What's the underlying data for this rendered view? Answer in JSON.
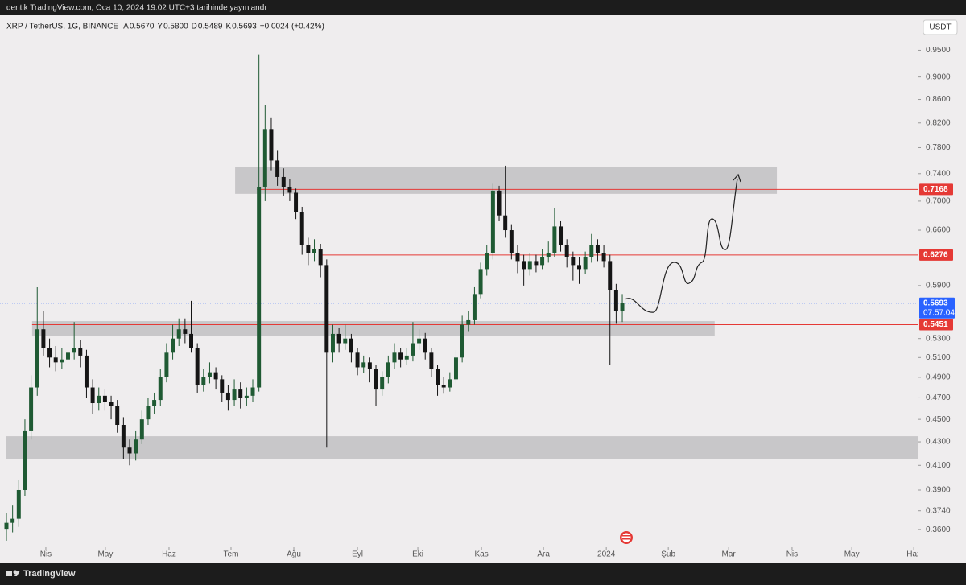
{
  "header": {
    "publish_note": "dentik TradingView.com, Oca 10, 2024 19:02 UTC+3 tarihinde yayınlandı",
    "symbol": "XRP / TetherUS, 1G, BINANCE",
    "ohlc": [
      {
        "label": "A",
        "value": "0.5670"
      },
      {
        "label": "Y",
        "value": "0.5800"
      },
      {
        "label": "D",
        "value": "0.5489"
      },
      {
        "label": "K",
        "value": "0.5693"
      }
    ],
    "change": "+0.0024 (+0.42%)",
    "currency": "USDT"
  },
  "footer": {
    "brand": "TradingView"
  },
  "chart_data": {
    "type": "candlestick",
    "log_scale": true,
    "up_color": "#1f5a33",
    "down_color": "#151515",
    "xlim": [
      -3.137,
      443.9
    ],
    "ylim": [
      0.3474,
      1.018
    ],
    "xticks": [
      {
        "value": 19.2,
        "label": "Nis"
      },
      {
        "value": 48.2,
        "label": "May"
      },
      {
        "value": 79.2,
        "label": "Haz"
      },
      {
        "value": 109.4,
        "label": "Tem"
      },
      {
        "value": 140,
        "label": "Ağu"
      },
      {
        "value": 171,
        "label": "Eyl"
      },
      {
        "value": 200.4,
        "label": "Eki"
      },
      {
        "value": 231.4,
        "label": "Kas"
      },
      {
        "value": 261.6,
        "label": "Ara"
      },
      {
        "value": 292.2,
        "label": "2024"
      },
      {
        "value": 322.4,
        "label": "Şub"
      },
      {
        "value": 351.8,
        "label": "Mar"
      },
      {
        "value": 382.7,
        "label": "Nis"
      },
      {
        "value": 411.8,
        "label": "May"
      },
      {
        "value": 442,
        "label": "Haz"
      }
    ],
    "yticks": [
      {
        "value": 0.95,
        "label": "0.9500"
      },
      {
        "value": 0.9,
        "label": "0.9000"
      },
      {
        "value": 0.86,
        "label": "0.8600"
      },
      {
        "value": 0.82,
        "label": "0.8200"
      },
      {
        "value": 0.78,
        "label": "0.7800"
      },
      {
        "value": 0.74,
        "label": "0.7400"
      },
      {
        "value": 0.7,
        "label": "0.7000"
      },
      {
        "value": 0.66,
        "label": "0.6600"
      },
      {
        "value": 0.59,
        "label": "0.5900"
      },
      {
        "value": 0.53,
        "label": "0.5300"
      },
      {
        "value": 0.51,
        "label": "0.5100"
      },
      {
        "value": 0.49,
        "label": "0.4900"
      },
      {
        "value": 0.47,
        "label": "0.4700"
      },
      {
        "value": 0.45,
        "label": "0.4500"
      },
      {
        "value": 0.43,
        "label": "0.4300"
      },
      {
        "value": 0.41,
        "label": "0.4100"
      },
      {
        "value": 0.39,
        "label": "0.3900"
      },
      {
        "value": 0.374,
        "label": "0.3740"
      },
      {
        "value": 0.36,
        "label": "0.3600"
      }
    ],
    "zones": [
      {
        "x": [
          111.4,
          375.3
        ],
        "y": [
          0.7104,
          0.7495
        ],
        "color": "#c8c7c9"
      },
      {
        "x": [
          12.5,
          345
        ],
        "y": [
          0.5325,
          0.549
        ],
        "color": "#c8c7c9"
      },
      {
        "x": [
          0,
          444
        ],
        "y": [
          0.4155,
          0.4349
        ],
        "color": "#c8c7c9"
      }
    ],
    "levels": [
      {
        "value": 0.7168,
        "label": "0.7168",
        "x_from": 122,
        "color": "#e53935"
      },
      {
        "value": 0.6276,
        "label": "0.6276",
        "x_from": 153.7,
        "color": "#e53935"
      },
      {
        "value": 0.5451,
        "label": "0.5451",
        "x_from": 12.5,
        "color": "#e53935"
      }
    ],
    "last_price": {
      "value": 0.5693,
      "label": "0.5693",
      "countdown": "07:57:04",
      "color": "#2962ff"
    },
    "x": [
      0,
      3,
      6,
      9,
      12,
      15,
      18,
      21,
      24,
      27,
      30,
      33,
      36,
      39,
      42,
      45,
      48,
      51,
      54,
      57,
      60,
      63,
      66,
      69,
      72,
      75,
      78,
      81,
      84,
      87,
      90,
      93,
      96,
      99,
      102,
      105,
      108,
      111,
      114,
      117,
      120,
      123,
      126,
      129,
      132,
      135,
      138,
      141,
      144,
      147,
      150,
      153,
      156,
      159,
      162,
      165,
      168,
      171,
      174,
      177,
      180,
      183,
      186,
      189,
      192,
      195,
      198,
      201,
      204,
      207,
      210,
      213,
      216,
      219,
      222,
      225,
      228,
      231,
      234,
      237,
      240,
      243,
      246,
      249,
      252,
      255,
      258,
      261,
      264,
      267,
      270,
      273,
      276,
      279,
      282,
      285,
      288,
      291,
      294,
      297,
      300
    ],
    "ohlc": [
      [
        0.36,
        0.372,
        0.352,
        0.365
      ],
      [
        0.365,
        0.378,
        0.358,
        0.368
      ],
      [
        0.368,
        0.398,
        0.362,
        0.39
      ],
      [
        0.39,
        0.45,
        0.385,
        0.44
      ],
      [
        0.44,
        0.492,
        0.432,
        0.48
      ],
      [
        0.48,
        0.588,
        0.472,
        0.54
      ],
      [
        0.54,
        0.56,
        0.512,
        0.52
      ],
      [
        0.52,
        0.53,
        0.5,
        0.51
      ],
      [
        0.51,
        0.522,
        0.496,
        0.505
      ],
      [
        0.505,
        0.52,
        0.498,
        0.508
      ],
      [
        0.508,
        0.53,
        0.502,
        0.515
      ],
      [
        0.515,
        0.548,
        0.508,
        0.52
      ],
      [
        0.52,
        0.528,
        0.5,
        0.512
      ],
      [
        0.512,
        0.518,
        0.47,
        0.48
      ],
      [
        0.48,
        0.488,
        0.455,
        0.465
      ],
      [
        0.465,
        0.48,
        0.458,
        0.472
      ],
      [
        0.472,
        0.478,
        0.458,
        0.466
      ],
      [
        0.466,
        0.472,
        0.45,
        0.462
      ],
      [
        0.462,
        0.468,
        0.438,
        0.445
      ],
      [
        0.445,
        0.452,
        0.415,
        0.425
      ],
      [
        0.425,
        0.432,
        0.41,
        0.42
      ],
      [
        0.42,
        0.44,
        0.414,
        0.432
      ],
      [
        0.432,
        0.458,
        0.428,
        0.45
      ],
      [
        0.45,
        0.47,
        0.445,
        0.462
      ],
      [
        0.462,
        0.475,
        0.455,
        0.468
      ],
      [
        0.468,
        0.498,
        0.462,
        0.49
      ],
      [
        0.49,
        0.525,
        0.485,
        0.515
      ],
      [
        0.515,
        0.545,
        0.508,
        0.53
      ],
      [
        0.53,
        0.552,
        0.522,
        0.54
      ],
      [
        0.54,
        0.552,
        0.525,
        0.535
      ],
      [
        0.535,
        0.572,
        0.515,
        0.52
      ],
      [
        0.52,
        0.525,
        0.475,
        0.482
      ],
      [
        0.482,
        0.498,
        0.476,
        0.49
      ],
      [
        0.49,
        0.505,
        0.484,
        0.495
      ],
      [
        0.495,
        0.5,
        0.478,
        0.488
      ],
      [
        0.488,
        0.492,
        0.466,
        0.475
      ],
      [
        0.475,
        0.482,
        0.458,
        0.468
      ],
      [
        0.468,
        0.488,
        0.462,
        0.478
      ],
      [
        0.478,
        0.485,
        0.46,
        0.47
      ],
      [
        0.47,
        0.48,
        0.462,
        0.472
      ],
      [
        0.472,
        0.488,
        0.466,
        0.48
      ],
      [
        0.48,
        0.942,
        0.476,
        0.72
      ],
      [
        0.72,
        0.85,
        0.7,
        0.81
      ],
      [
        0.81,
        0.828,
        0.745,
        0.76
      ],
      [
        0.76,
        0.775,
        0.722,
        0.735
      ],
      [
        0.735,
        0.748,
        0.708,
        0.72
      ],
      [
        0.72,
        0.732,
        0.7,
        0.712
      ],
      [
        0.712,
        0.718,
        0.675,
        0.685
      ],
      [
        0.685,
        0.692,
        0.628,
        0.64
      ],
      [
        0.64,
        0.65,
        0.615,
        0.63
      ],
      [
        0.63,
        0.648,
        0.62,
        0.635
      ],
      [
        0.635,
        0.642,
        0.6,
        0.615
      ],
      [
        0.615,
        0.622,
        0.425,
        0.515
      ],
      [
        0.515,
        0.545,
        0.505,
        0.535
      ],
      [
        0.535,
        0.542,
        0.515,
        0.525
      ],
      [
        0.525,
        0.545,
        0.518,
        0.53
      ],
      [
        0.53,
        0.535,
        0.505,
        0.515
      ],
      [
        0.515,
        0.52,
        0.492,
        0.5
      ],
      [
        0.5,
        0.512,
        0.494,
        0.505
      ],
      [
        0.505,
        0.51,
        0.485,
        0.498
      ],
      [
        0.498,
        0.502,
        0.462,
        0.478
      ],
      [
        0.478,
        0.496,
        0.472,
        0.49
      ],
      [
        0.49,
        0.512,
        0.484,
        0.505
      ],
      [
        0.505,
        0.525,
        0.498,
        0.515
      ],
      [
        0.515,
        0.52,
        0.5,
        0.508
      ],
      [
        0.508,
        0.52,
        0.502,
        0.512
      ],
      [
        0.512,
        0.548,
        0.506,
        0.525
      ],
      [
        0.525,
        0.54,
        0.518,
        0.53
      ],
      [
        0.53,
        0.536,
        0.508,
        0.515
      ],
      [
        0.515,
        0.52,
        0.49,
        0.498
      ],
      [
        0.498,
        0.502,
        0.472,
        0.482
      ],
      [
        0.482,
        0.49,
        0.474,
        0.48
      ],
      [
        0.48,
        0.495,
        0.476,
        0.488
      ],
      [
        0.488,
        0.518,
        0.484,
        0.51
      ],
      [
        0.51,
        0.555,
        0.505,
        0.545
      ],
      [
        0.545,
        0.56,
        0.538,
        0.55
      ],
      [
        0.55,
        0.588,
        0.545,
        0.58
      ],
      [
        0.58,
        0.618,
        0.575,
        0.61
      ],
      [
        0.61,
        0.64,
        0.602,
        0.63
      ],
      [
        0.63,
        0.725,
        0.622,
        0.715
      ],
      [
        0.715,
        0.722,
        0.672,
        0.68
      ],
      [
        0.68,
        0.752,
        0.65,
        0.66
      ],
      [
        0.66,
        0.668,
        0.622,
        0.63
      ],
      [
        0.63,
        0.64,
        0.605,
        0.62
      ],
      [
        0.62,
        0.628,
        0.59,
        0.61
      ],
      [
        0.61,
        0.63,
        0.602,
        0.62
      ],
      [
        0.62,
        0.628,
        0.606,
        0.615
      ],
      [
        0.615,
        0.635,
        0.61,
        0.625
      ],
      [
        0.625,
        0.645,
        0.618,
        0.63
      ],
      [
        0.63,
        0.69,
        0.625,
        0.665
      ],
      [
        0.665,
        0.672,
        0.632,
        0.64
      ],
      [
        0.64,
        0.648,
        0.612,
        0.625
      ],
      [
        0.625,
        0.632,
        0.596,
        0.615
      ],
      [
        0.615,
        0.625,
        0.592,
        0.61
      ],
      [
        0.61,
        0.632,
        0.604,
        0.625
      ],
      [
        0.625,
        0.655,
        0.618,
        0.64
      ],
      [
        0.64,
        0.648,
        0.62,
        0.63
      ],
      [
        0.63,
        0.64,
        0.612,
        0.62
      ],
      [
        0.62,
        0.628,
        0.502,
        0.585
      ],
      [
        0.585,
        0.592,
        0.546,
        0.56
      ],
      [
        0.56,
        0.58,
        0.548,
        0.5693
      ]
    ]
  }
}
